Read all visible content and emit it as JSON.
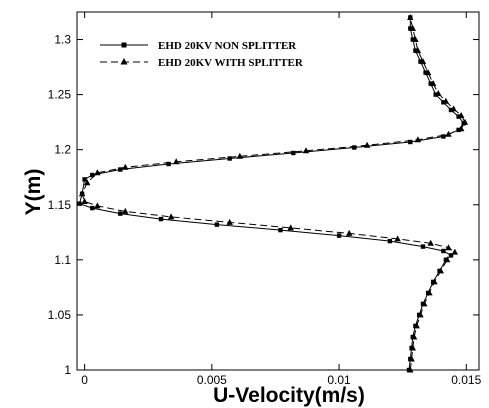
{
  "chart_data": {
    "type": "line",
    "xlabel": "U-Velocity(m/s)",
    "ylabel": "Y(m)",
    "xlim": [
      -0.0003,
      0.0155
    ],
    "ylim": [
      1.0,
      1.325
    ],
    "x_ticks": [
      "0",
      "0.005",
      "0.01",
      "0.015"
    ],
    "x_tick_values": [
      0,
      0.005,
      0.01,
      0.015
    ],
    "y_ticks": [
      "1",
      "1.05",
      "1.1",
      "1.15",
      "1.2",
      "1.25",
      "1.3"
    ],
    "y_tick_values": [
      1.0,
      1.05,
      1.1,
      1.15,
      1.2,
      1.25,
      1.3
    ],
    "grid": false,
    "legend_position": "top-left",
    "series": [
      {
        "name": "EHD 20KV NON SPLITTER",
        "line_style": "solid",
        "marker": "square",
        "color": "#000000",
        "points": [
          [
            0.01275,
            1.0
          ],
          [
            0.0128,
            1.01
          ],
          [
            0.01285,
            1.02
          ],
          [
            0.0129,
            1.03
          ],
          [
            0.013,
            1.04
          ],
          [
            0.01315,
            1.05
          ],
          [
            0.0133,
            1.06
          ],
          [
            0.0135,
            1.07
          ],
          [
            0.0137,
            1.08
          ],
          [
            0.01395,
            1.09
          ],
          [
            0.0142,
            1.1
          ],
          [
            0.0144,
            1.104
          ],
          [
            0.0141,
            1.108
          ],
          [
            0.0133,
            1.112
          ],
          [
            0.012,
            1.117
          ],
          [
            0.01,
            1.122
          ],
          [
            0.0077,
            1.127
          ],
          [
            0.0052,
            1.132
          ],
          [
            0.003,
            1.137
          ],
          [
            0.0014,
            1.142
          ],
          [
            0.0003,
            1.147
          ],
          [
            -0.0002,
            1.151
          ],
          [
            -0.0001,
            1.16
          ],
          [
            0.0,
            1.173
          ],
          [
            0.0003,
            1.177
          ],
          [
            0.0014,
            1.182
          ],
          [
            0.0033,
            1.187
          ],
          [
            0.0057,
            1.192
          ],
          [
            0.0082,
            1.197
          ],
          [
            0.0106,
            1.202
          ],
          [
            0.0128,
            1.207
          ],
          [
            0.0141,
            1.212
          ],
          [
            0.0147,
            1.218
          ],
          [
            0.0149,
            1.224
          ],
          [
            0.0147,
            1.23
          ],
          [
            0.0144,
            1.236
          ],
          [
            0.0141,
            1.243
          ],
          [
            0.0138,
            1.25
          ],
          [
            0.0136,
            1.26
          ],
          [
            0.0134,
            1.27
          ],
          [
            0.0132,
            1.28
          ],
          [
            0.013,
            1.29
          ],
          [
            0.0129,
            1.3
          ],
          [
            0.0128,
            1.31
          ],
          [
            0.0128,
            1.32
          ]
        ]
      },
      {
        "name": "EHD 20KV WITH SPLITTER",
        "line_style": "dashed",
        "marker": "triangle",
        "color": "#000000",
        "points": [
          [
            0.0128,
            1.0
          ],
          [
            0.01285,
            1.01
          ],
          [
            0.0129,
            1.02
          ],
          [
            0.01295,
            1.03
          ],
          [
            0.01305,
            1.04
          ],
          [
            0.0132,
            1.05
          ],
          [
            0.01335,
            1.06
          ],
          [
            0.01355,
            1.07
          ],
          [
            0.01375,
            1.08
          ],
          [
            0.014,
            1.09
          ],
          [
            0.01425,
            1.1
          ],
          [
            0.01455,
            1.107
          ],
          [
            0.0143,
            1.111
          ],
          [
            0.0136,
            1.115
          ],
          [
            0.0123,
            1.119
          ],
          [
            0.0104,
            1.124
          ],
          [
            0.0081,
            1.129
          ],
          [
            0.0057,
            1.134
          ],
          [
            0.0034,
            1.139
          ],
          [
            0.0016,
            1.144
          ],
          [
            0.0005,
            1.149
          ],
          [
            0.0,
            1.153
          ],
          [
            -0.0001,
            1.16
          ],
          [
            0.0001,
            1.17
          ],
          [
            0.0005,
            1.179
          ],
          [
            0.0016,
            1.184
          ],
          [
            0.0036,
            1.189
          ],
          [
            0.0061,
            1.194
          ],
          [
            0.0087,
            1.199
          ],
          [
            0.0111,
            1.204
          ],
          [
            0.0131,
            1.209
          ],
          [
            0.0143,
            1.214
          ],
          [
            0.0148,
            1.219
          ],
          [
            0.01495,
            1.225
          ],
          [
            0.0148,
            1.231
          ],
          [
            0.0145,
            1.237
          ],
          [
            0.0142,
            1.244
          ],
          [
            0.0139,
            1.251
          ],
          [
            0.0137,
            1.26
          ],
          [
            0.0135,
            1.27
          ],
          [
            0.0133,
            1.28
          ],
          [
            0.0131,
            1.29
          ],
          [
            0.013,
            1.3
          ],
          [
            0.0129,
            1.31
          ],
          [
            0.0128,
            1.32
          ]
        ]
      }
    ]
  }
}
